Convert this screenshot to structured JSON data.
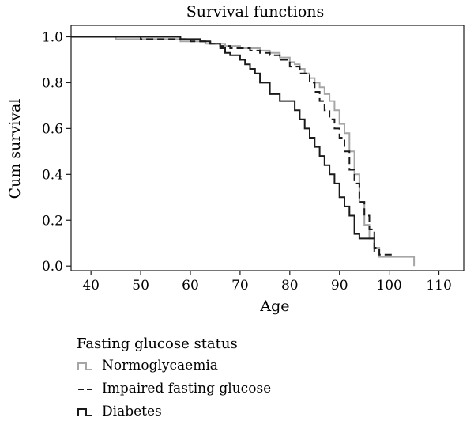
{
  "chart_data": {
    "type": "line",
    "title": "Survival functions",
    "xlabel": "Age",
    "ylabel": "Cum survival",
    "xlim": [
      36,
      115
    ],
    "ylim": [
      -0.02,
      1.05
    ],
    "xticks": [
      40,
      50,
      60,
      70,
      80,
      90,
      100,
      110
    ],
    "yticks": [
      "0.0",
      "0.2",
      "0.4",
      "0.6",
      "0.8",
      "1.0"
    ],
    "grid": false,
    "legend": {
      "title": "Fasting glucose status",
      "placement": "bottom-left, below plot"
    },
    "series": [
      {
        "name": "Normoglycaemia",
        "color": "#a6a6a6",
        "dash": "solid",
        "x": [
          36,
          45,
          50,
          58,
          63,
          67,
          70,
          72,
          74,
          76,
          78,
          80,
          81,
          82,
          83,
          84,
          85,
          86,
          87,
          88,
          89,
          90,
          91,
          92,
          93,
          94,
          95,
          96,
          97,
          98,
          105,
          105
        ],
        "y": [
          1.0,
          0.99,
          0.99,
          0.98,
          0.97,
          0.96,
          0.95,
          0.95,
          0.94,
          0.93,
          0.91,
          0.89,
          0.88,
          0.86,
          0.84,
          0.82,
          0.8,
          0.78,
          0.75,
          0.72,
          0.68,
          0.62,
          0.58,
          0.5,
          0.4,
          0.28,
          0.18,
          0.12,
          0.08,
          0.04,
          0.04,
          0.0
        ]
      },
      {
        "name": "Impaired fasting glucose",
        "color": "#1a1a1a",
        "dash": "dashed",
        "x": [
          36,
          50,
          60,
          64,
          66,
          68,
          70,
          72,
          74,
          76,
          78,
          80,
          82,
          84,
          85,
          86,
          87,
          88,
          89,
          90,
          91,
          92,
          93,
          94,
          95,
          96,
          97,
          98,
          101
        ],
        "y": [
          1.0,
          0.99,
          0.98,
          0.97,
          0.96,
          0.95,
          0.95,
          0.94,
          0.93,
          0.92,
          0.9,
          0.87,
          0.84,
          0.8,
          0.76,
          0.72,
          0.68,
          0.64,
          0.6,
          0.56,
          0.5,
          0.42,
          0.36,
          0.28,
          0.22,
          0.16,
          0.08,
          0.05,
          0.05
        ]
      },
      {
        "name": "Diabetes",
        "color": "#1a1a1a",
        "dash": "solid",
        "x": [
          36,
          50,
          58,
          62,
          64,
          66,
          67,
          68,
          70,
          71,
          72,
          73,
          74,
          76,
          78,
          80,
          81,
          82,
          83,
          84,
          85,
          86,
          87,
          88,
          89,
          90,
          91,
          92,
          93,
          94,
          95,
          96,
          97
        ],
        "y": [
          1.0,
          1.0,
          0.99,
          0.98,
          0.97,
          0.95,
          0.93,
          0.92,
          0.9,
          0.88,
          0.86,
          0.84,
          0.8,
          0.75,
          0.72,
          0.72,
          0.68,
          0.64,
          0.6,
          0.56,
          0.52,
          0.48,
          0.44,
          0.4,
          0.36,
          0.3,
          0.26,
          0.22,
          0.14,
          0.12,
          0.12,
          0.12,
          0.06
        ]
      }
    ]
  }
}
